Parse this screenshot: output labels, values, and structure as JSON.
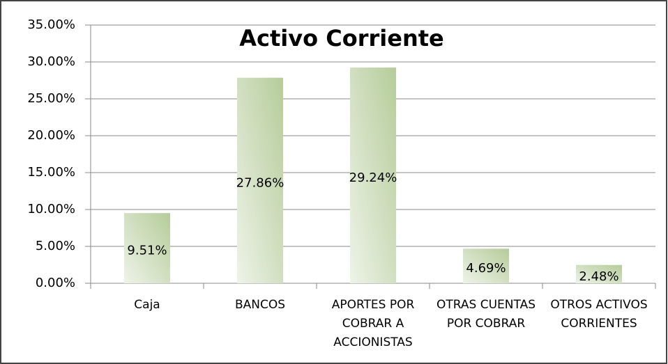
{
  "chart_data": {
    "type": "bar",
    "title": "Activo Corriente",
    "categories": [
      "Caja",
      "BANCOS",
      "APORTES POR COBRAR A ACCIONISTAS",
      "OTRAS CUENTAS POR COBRAR",
      "OTROS ACTIVOS CORRIENTES"
    ],
    "values": [
      9.51,
      27.86,
      29.24,
      4.69,
      2.48
    ],
    "value_labels": [
      "9.51%",
      "27.86%",
      "29.24%",
      "4.69%",
      "2.48%"
    ],
    "color": "#b5cc9a",
    "ylim": [
      0,
      35
    ],
    "yticks": [
      {
        "value": 0,
        "label": "0.00%"
      },
      {
        "value": 5,
        "label": "5.00%"
      },
      {
        "value": 10,
        "label": "10.00%"
      },
      {
        "value": 15,
        "label": "15.00%"
      },
      {
        "value": 20,
        "label": "20.00%"
      },
      {
        "value": 25,
        "label": "25.00%"
      },
      {
        "value": 30,
        "label": "30.00%"
      },
      {
        "value": 35,
        "label": "35.00%"
      }
    ],
    "grid": true
  }
}
